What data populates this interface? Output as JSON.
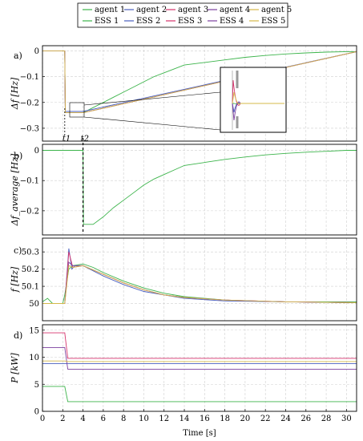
{
  "chart_data": [
    {
      "panel": "a)",
      "type": "line",
      "ylabel": "Δf [Hz]",
      "xlim": [
        0,
        31
      ],
      "ylim": [
        -0.35,
        0.02
      ],
      "yticks": [
        0,
        -0.1,
        -0.2,
        -0.3
      ],
      "ytick_labels": [
        "0",
        "−0.1",
        "−0.2",
        "−0.3"
      ],
      "annotations": [
        "t1",
        "t2"
      ],
      "inset": "zoomed view of transient after t1",
      "series": [
        {
          "name": "agent 1",
          "x": [
            0,
            2.2,
            2.25,
            4,
            5,
            6,
            7,
            8,
            9,
            10,
            11,
            12,
            13,
            14,
            16,
            18,
            20,
            22,
            24,
            26,
            28,
            30,
            31
          ],
          "y": [
            0,
            0,
            -0.24,
            -0.24,
            -0.22,
            -0.2,
            -0.18,
            -0.16,
            -0.14,
            -0.12,
            -0.1,
            -0.085,
            -0.07,
            -0.055,
            -0.045,
            -0.035,
            -0.025,
            -0.018,
            -0.012,
            -0.008,
            -0.005,
            -0.003,
            -0.003
          ]
        },
        {
          "name": "agent 2",
          "x": [
            0,
            2.2,
            2.25,
            4,
            31
          ],
          "y": [
            0,
            0,
            -0.235,
            -0.235,
            -0.003
          ]
        },
        {
          "name": "agent 3",
          "x": [
            0,
            2.2,
            2.25,
            4,
            31
          ],
          "y": [
            0,
            0,
            -0.24,
            -0.24,
            -0.003
          ]
        },
        {
          "name": "agent 4",
          "x": [
            0,
            2.2,
            2.25,
            4,
            31
          ],
          "y": [
            0,
            0,
            -0.24,
            -0.24,
            -0.003
          ]
        },
        {
          "name": "agent 5",
          "x": [
            0,
            2.2,
            2.25,
            4,
            31
          ],
          "y": [
            0,
            0,
            -0.24,
            -0.24,
            -0.003
          ]
        }
      ]
    },
    {
      "panel": "b)",
      "type": "line",
      "ylabel": "Δf_average [Hz]",
      "xlim": [
        0,
        31
      ],
      "ylim": [
        -0.28,
        0.02
      ],
      "yticks": [
        0,
        -0.1,
        -0.2
      ],
      "ytick_labels": [
        "0",
        "−0.1",
        "−0.2"
      ],
      "series": [
        {
          "name": "average",
          "x": [
            0,
            4.0,
            4.05,
            5,
            6,
            7,
            8,
            9,
            10,
            11,
            12,
            13,
            14,
            16,
            18,
            20,
            22,
            24,
            26,
            28,
            30,
            31
          ],
          "y": [
            0,
            0,
            -0.245,
            -0.245,
            -0.22,
            -0.19,
            -0.165,
            -0.14,
            -0.115,
            -0.095,
            -0.08,
            -0.065,
            -0.05,
            -0.04,
            -0.03,
            -0.022,
            -0.015,
            -0.01,
            -0.006,
            -0.003,
            0,
            0
          ]
        }
      ]
    },
    {
      "panel": "c)",
      "type": "line",
      "ylabel": "f [Hz]",
      "xlim": [
        0,
        31
      ],
      "ylim": [
        49.9,
        50.38
      ],
      "yticks": [
        50,
        50.1,
        50.2,
        50.3
      ],
      "ytick_labels": [
        "50",
        "50.1",
        "50.2",
        "50.3"
      ],
      "series": [
        {
          "name": "agent 1",
          "x": [
            0,
            0.5,
            1,
            2,
            2.2,
            2.6,
            3,
            4,
            5,
            6,
            8,
            10,
            12,
            14,
            16,
            18,
            20,
            24,
            28,
            31
          ],
          "y": [
            50.01,
            50.03,
            50.0,
            50.0,
            50.05,
            50.2,
            50.22,
            50.23,
            50.21,
            50.18,
            50.13,
            50.09,
            50.06,
            50.04,
            50.03,
            50.02,
            50.015,
            50.01,
            50.01,
            50.01
          ]
        },
        {
          "name": "agent 2",
          "x": [
            0,
            2.2,
            2.6,
            2.9,
            3.2,
            4,
            6,
            8,
            10,
            12,
            14,
            18,
            24,
            31
          ],
          "y": [
            50.0,
            50.0,
            50.32,
            50.2,
            50.22,
            50.22,
            50.16,
            50.11,
            50.07,
            50.05,
            50.03,
            50.015,
            50.01,
            50.005
          ]
        },
        {
          "name": "agent 3",
          "x": [
            0,
            2.2,
            2.6,
            3,
            4,
            6,
            8,
            10,
            12,
            14,
            18,
            24,
            31
          ],
          "y": [
            50.0,
            50.0,
            50.3,
            50.21,
            50.22,
            50.17,
            50.12,
            50.08,
            50.05,
            50.035,
            50.02,
            50.01,
            50.005
          ]
        },
        {
          "name": "agent 4",
          "x": [
            0,
            2.2,
            2.6,
            3,
            4,
            6,
            8,
            10,
            12,
            14,
            18,
            24,
            31
          ],
          "y": [
            50.0,
            50.0,
            50.24,
            50.22,
            50.22,
            50.17,
            50.12,
            50.08,
            50.05,
            50.035,
            50.02,
            50.01,
            50.005
          ]
        },
        {
          "name": "agent 5",
          "x": [
            0,
            2.2,
            2.6,
            3,
            4,
            6,
            8,
            10,
            12,
            14,
            18,
            24,
            31
          ],
          "y": [
            50.0,
            50.0,
            50.22,
            50.21,
            50.22,
            50.17,
            50.12,
            50.08,
            50.05,
            50.035,
            50.02,
            50.01,
            50.005
          ]
        }
      ]
    },
    {
      "panel": "d)",
      "type": "line",
      "ylabel": "P [kW]",
      "xlabel": "Time [s]",
      "xlim": [
        0,
        31
      ],
      "ylim": [
        0,
        16
      ],
      "yticks": [
        0,
        5,
        10,
        15
      ],
      "xticks": [
        0,
        2,
        4,
        6,
        8,
        10,
        12,
        14,
        16,
        18,
        20,
        22,
        24,
        26,
        28,
        30
      ],
      "series": [
        {
          "name": "ESS 1",
          "x": [
            0,
            2.2,
            2.5,
            31
          ],
          "y": [
            4.6,
            4.6,
            1.8,
            1.8
          ]
        },
        {
          "name": "ESS 2",
          "x": [
            0,
            2.2,
            2.5,
            31
          ],
          "y": [
            8.8,
            8.8,
            8.8,
            8.8
          ]
        },
        {
          "name": "ESS 3",
          "x": [
            0,
            2.2,
            2.5,
            31
          ],
          "y": [
            14.5,
            14.5,
            9.8,
            9.8
          ]
        },
        {
          "name": "ESS 4",
          "x": [
            0,
            2.2,
            2.5,
            31
          ],
          "y": [
            11.8,
            11.8,
            7.8,
            7.8
          ]
        },
        {
          "name": "ESS 5",
          "x": [
            0,
            2.2,
            2.5,
            31
          ],
          "y": [
            9.3,
            9.3,
            9.2,
            9.2
          ]
        }
      ]
    }
  ],
  "legend": {
    "row1": [
      "agent 1",
      "agent 2",
      "agent 3",
      "agent 4",
      "agent 5"
    ],
    "row2": [
      "ESS 1",
      "ESS 2",
      "ESS 3",
      "ESS 4",
      "ESS 5"
    ],
    "colors": [
      "#3cb44b",
      "#4a5fbf",
      "#d6336c",
      "#7b3f9e",
      "#d4b84a"
    ]
  },
  "panel_labels": [
    "a)",
    "b)",
    "c)",
    "d)"
  ],
  "ylabels": [
    "Δf [Hz]",
    "Δf_average [Hz]",
    "f [Hz]",
    "P [kW]"
  ],
  "xlabel": "Time [s]",
  "annotations": {
    "t1": "t1",
    "t2": "t2"
  },
  "colors": {
    "agent1": "#3cb44b",
    "agent2": "#4a5fbf",
    "agent3": "#d6336c",
    "agent4": "#7b3f9e",
    "agent5": "#d4b84a",
    "axes": "#000000",
    "grid": "#cccccc"
  }
}
